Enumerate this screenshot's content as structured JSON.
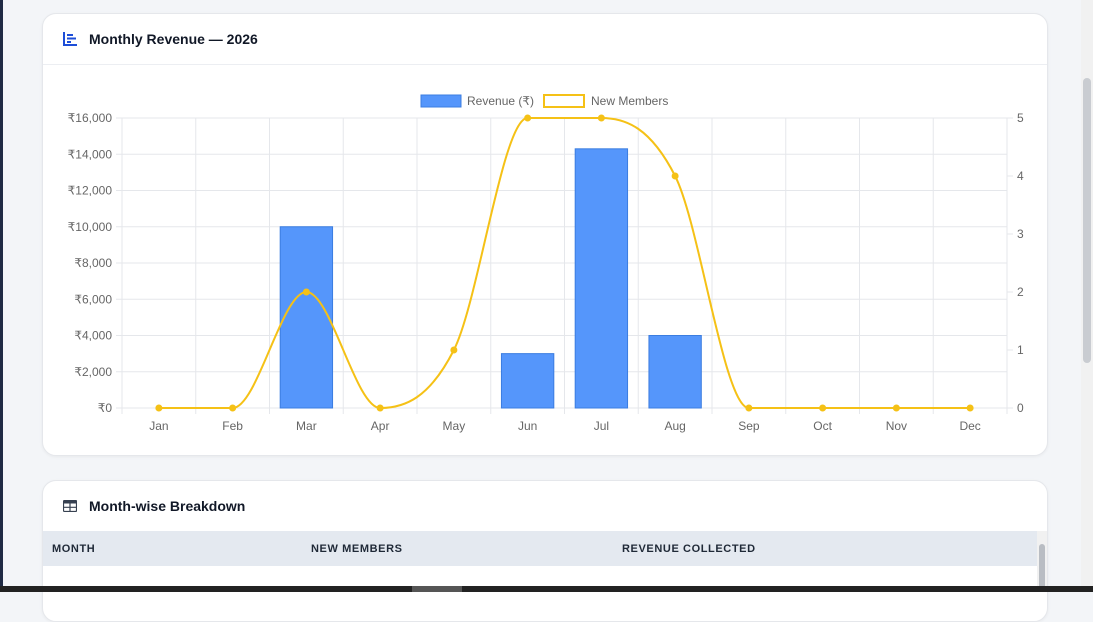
{
  "chart_card": {
    "title": "Monthly Revenue — 2026",
    "icon": "bar-chart-icon"
  },
  "table_card": {
    "title": "Month-wise Breakdown",
    "icon": "table-icon",
    "columns": [
      "MONTH",
      "NEW MEMBERS",
      "REVENUE COLLECTED"
    ]
  },
  "colors": {
    "revenue_bar": "#5596fb",
    "revenue_bar_border": "#3b7de0",
    "members_line": "#f5c116",
    "accent": "#1d4ed8"
  },
  "chart_data": {
    "type": "bar",
    "categories": [
      "Jan",
      "Feb",
      "Mar",
      "Apr",
      "May",
      "Jun",
      "Jul",
      "Aug",
      "Sep",
      "Oct",
      "Nov",
      "Dec"
    ],
    "series": [
      {
        "name": "Revenue (₹)",
        "type": "bar",
        "axis": "left",
        "values": [
          0,
          0,
          10000,
          0,
          0,
          3000,
          14300,
          4000,
          0,
          0,
          0,
          0
        ]
      },
      {
        "name": "New Members",
        "type": "line",
        "axis": "right",
        "values": [
          0,
          0,
          2,
          0,
          1,
          5,
          5,
          4,
          0,
          0,
          0,
          0
        ]
      }
    ],
    "y_left": {
      "min": 0,
      "max": 16000,
      "step": 2000,
      "ticks": [
        "₹0",
        "₹2,000",
        "₹4,000",
        "₹6,000",
        "₹8,000",
        "₹10,000",
        "₹12,000",
        "₹14,000",
        "₹16,000"
      ]
    },
    "y_right": {
      "min": 0,
      "max": 5,
      "step": 1,
      "ticks": [
        "0",
        "1",
        "2",
        "3",
        "4",
        "5"
      ]
    },
    "legend_position": "top-center",
    "grid": true
  }
}
